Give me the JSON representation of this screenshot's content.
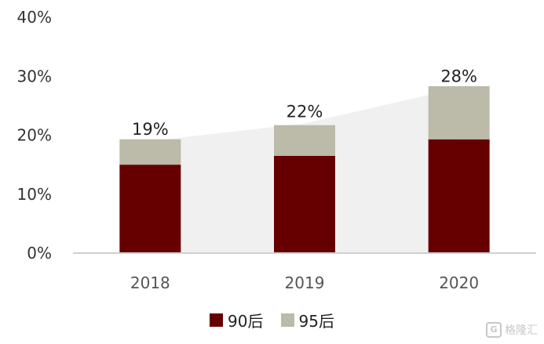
{
  "chart_data": {
    "type": "bar",
    "stacked": true,
    "categories": [
      "2018",
      "2019",
      "2020"
    ],
    "series": [
      {
        "name": "90后",
        "values": [
          15,
          16.5,
          19.3
        ],
        "color": "#660000"
      },
      {
        "name": "95后",
        "values": [
          4.3,
          5.2,
          9
        ],
        "color": "#bcbaa8"
      }
    ],
    "totals": [
      19,
      22,
      28
    ],
    "total_labels": [
      "19%",
      "22%",
      "28%"
    ],
    "ylim": [
      0,
      40
    ],
    "yticks": [
      0,
      10,
      20,
      30,
      40
    ],
    "ytick_labels": [
      "0%",
      "10%",
      "20%",
      "30%",
      "40%"
    ],
    "area_color": "#f0f0f0",
    "legend_position": "bottom",
    "grid": false
  },
  "watermark": {
    "icon": "G",
    "text": "格隆汇"
  }
}
